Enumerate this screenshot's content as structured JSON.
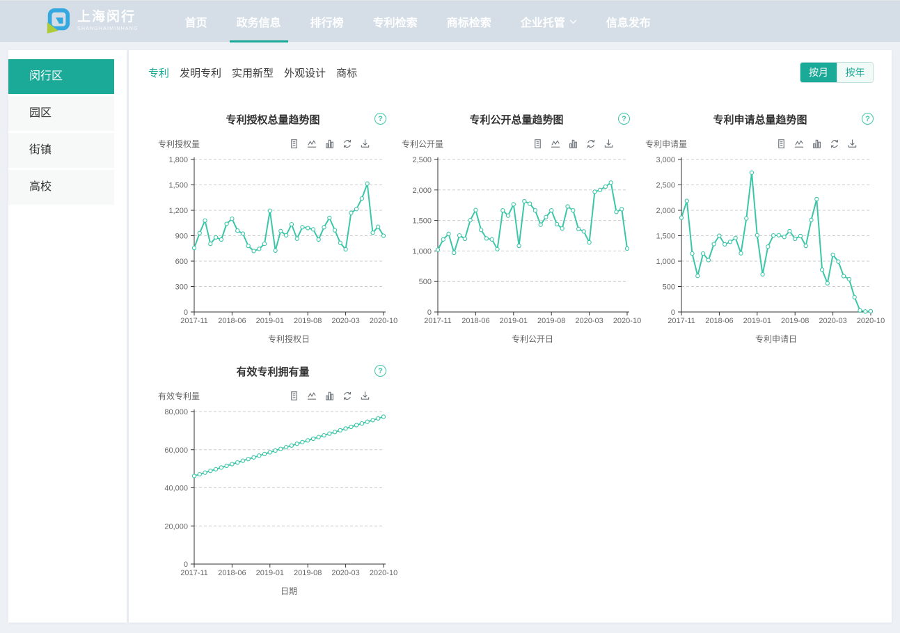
{
  "theme": {
    "accent": "#1ba998",
    "line_color": "#3cc6a8",
    "header_bg": "#d5dee7",
    "page_bg": "#edf1f6"
  },
  "icons": {
    "help_glyph": "?"
  },
  "header": {
    "logo_title": "上海闵行",
    "logo_subtitle": "SHANGHAIMINHANG",
    "nav_items": [
      {
        "label": "首页",
        "name": "home",
        "active": false
      },
      {
        "label": "政务信息",
        "name": "gov-info",
        "active": true
      },
      {
        "label": "排行榜",
        "name": "ranking",
        "active": false
      },
      {
        "label": "专利检索",
        "name": "patent-search",
        "active": false
      },
      {
        "label": "商标检索",
        "name": "trademark-search",
        "active": false
      },
      {
        "label": "企业托管",
        "name": "enterprise-hosting",
        "active": false,
        "chevron": true
      },
      {
        "label": "信息发布",
        "name": "info-release",
        "active": false
      }
    ]
  },
  "sidebar": {
    "items": [
      {
        "label": "闵行区",
        "name": "minhang-district",
        "active": true
      },
      {
        "label": "园区",
        "name": "park",
        "active": false
      },
      {
        "label": "街镇",
        "name": "town",
        "active": false
      },
      {
        "label": "高校",
        "name": "university",
        "active": false
      }
    ]
  },
  "tabs": [
    {
      "label": "专利",
      "name": "patent",
      "active": true
    },
    {
      "label": "发明专利",
      "name": "invention-patent",
      "active": false
    },
    {
      "label": "实用新型",
      "name": "utility-model",
      "active": false
    },
    {
      "label": "外观设计",
      "name": "design",
      "active": false
    },
    {
      "label": "商标",
      "name": "trademark",
      "active": false
    }
  ],
  "period_toggle": [
    {
      "label": "按月",
      "name": "monthly",
      "active": true
    },
    {
      "label": "按年",
      "name": "yearly",
      "active": false
    }
  ],
  "toolbox_icons": [
    "data-view",
    "switch-to-line",
    "switch-to-bar",
    "restore",
    "save-as-image"
  ],
  "chart_data": {
    "type": "line",
    "grid": true,
    "x_categories": [
      "2017-11",
      "2017-12",
      "2018-01",
      "2018-02",
      "2018-03",
      "2018-04",
      "2018-05",
      "2018-06",
      "2018-07",
      "2018-08",
      "2018-09",
      "2018-10",
      "2018-11",
      "2018-12",
      "2019-01",
      "2019-02",
      "2019-03",
      "2019-04",
      "2019-05",
      "2019-06",
      "2019-07",
      "2019-08",
      "2019-09",
      "2019-10",
      "2019-11",
      "2019-12",
      "2020-01",
      "2020-02",
      "2020-03",
      "2020-04",
      "2020-05",
      "2020-06",
      "2020-07",
      "2020-08",
      "2020-09",
      "2020-10"
    ],
    "x_tick_indices": [
      0,
      7,
      14,
      21,
      28,
      35
    ],
    "charts": [
      {
        "name": "grant-trend",
        "title": "专利授权总量趋势图",
        "ylabel": "专利授权量",
        "xlabel": "专利授权日",
        "ylim": [
          0,
          1800
        ],
        "ytick_step": 300,
        "values": [
          755,
          930,
          1080,
          805,
          880,
          855,
          1040,
          1100,
          960,
          925,
          780,
          720,
          745,
          805,
          1195,
          725,
          955,
          905,
          1035,
          865,
          1000,
          990,
          975,
          855,
          1000,
          1110,
          965,
          815,
          740,
          1170,
          1215,
          1340,
          1515,
          935,
          1005,
          900
        ]
      },
      {
        "name": "publication-trend",
        "title": "专利公开总量趋势图",
        "ylabel": "专利公开量",
        "xlabel": "专利公开日",
        "ylim": [
          0,
          2500
        ],
        "ytick_step": 500,
        "values": [
          1020,
          1190,
          1280,
          970,
          1255,
          1200,
          1505,
          1670,
          1345,
          1205,
          1190,
          1030,
          1665,
          1580,
          1765,
          1085,
          1815,
          1775,
          1665,
          1430,
          1555,
          1665,
          1440,
          1370,
          1730,
          1665,
          1360,
          1320,
          1140,
          1970,
          2000,
          2055,
          2120,
          1640,
          1685,
          1040
        ]
      },
      {
        "name": "application-trend",
        "title": "专利申请总量趋势图",
        "ylabel": "专利申请量",
        "xlabel": "专利申请日",
        "ylim": [
          0,
          3000
        ],
        "ytick_step": 500,
        "values": [
          1855,
          2185,
          1150,
          710,
          1150,
          1020,
          1335,
          1500,
          1330,
          1380,
          1455,
          1155,
          1840,
          2740,
          1510,
          740,
          1285,
          1505,
          1510,
          1475,
          1590,
          1440,
          1495,
          1300,
          1810,
          2220,
          830,
          565,
          1125,
          990,
          705,
          645,
          290,
          30,
          10,
          15
        ]
      },
      {
        "name": "valid-ownership",
        "title": "有效专利拥有量",
        "ylabel": "有效专利量",
        "xlabel": "日期",
        "ylim": [
          0,
          80000
        ],
        "ytick_step": 20000,
        "values": [
          46200,
          47090,
          47980,
          48870,
          49750,
          50640,
          51530,
          52420,
          53310,
          54200,
          55090,
          55970,
          56860,
          57750,
          58640,
          59530,
          60420,
          61310,
          62190,
          63080,
          63970,
          64860,
          65750,
          66640,
          67530,
          68410,
          69300,
          70190,
          71080,
          71970,
          72860,
          73750,
          74630,
          75520,
          76410,
          77300
        ]
      }
    ]
  }
}
